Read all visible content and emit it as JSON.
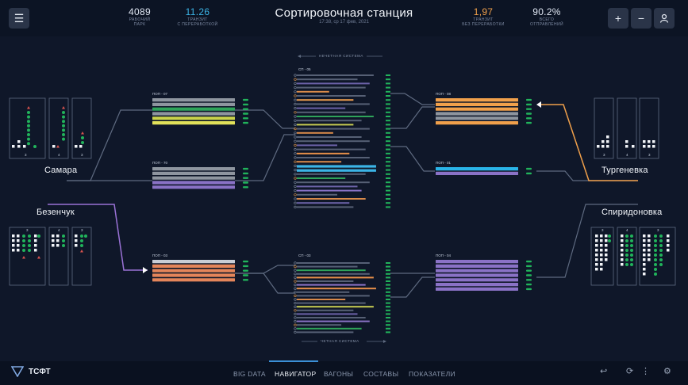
{
  "header": {
    "title": "Сортировочная станция",
    "subtitle": "17:38, ср 17 фев, 2021",
    "stats": [
      {
        "value": "4089",
        "label1": "РАБОЧИЙ",
        "label2": "ПАРК",
        "color": "#e8edf5"
      },
      {
        "value": "11.26",
        "label1": "ТРАНЗИТ",
        "label2": "С ПЕРЕРАБОТКОЙ",
        "color": "#3bb4e6"
      },
      {
        "value": "1,97",
        "label1": "ТРАНЗИТ",
        "label2": "БЕЗ ПЕРЕРАБОТКИ",
        "color": "#f0a04b"
      },
      {
        "value": "90.2%",
        "label1": "ВСЕГО",
        "label2": "ОТПРАВЛЕНИЙ",
        "color": "#e8edf5"
      }
    ],
    "buttons": {
      "menu": "☰",
      "zoom_in": "+",
      "zoom_out": "−",
      "profile": "👤"
    }
  },
  "systems": {
    "odd": "НЕЧЕТНАЯ СИСТЕМА",
    "even": "ЧЕТНАЯ СИСТЕМА"
  },
  "cities": {
    "samara": "Самара",
    "bezenchuk": "Безенчук",
    "turgenevka": "Тургеневка",
    "spiridonovka": "Спиридоновка"
  },
  "park_counts": {
    "samara": [
      "3",
      "4",
      "3"
    ],
    "bezenchuk": [
      "3",
      "4",
      "3"
    ],
    "turgenevka": [
      "3",
      "4",
      "3"
    ],
    "spiridonovka": [
      "3",
      "4",
      "3"
    ]
  },
  "yards": {
    "pop07": {
      "label": "ПОП - 07",
      "colors": [
        "#8e959f",
        "#8e959f",
        "#2fa45a",
        "#8e959f",
        "#c9d24a",
        "#e2e25a"
      ]
    },
    "pop70": {
      "label": "ПОП - 70",
      "colors": [
        "#8e959f",
        "#8e959f",
        "#8e959f",
        "#8a72c6",
        "#8a72c6"
      ]
    },
    "pop03": {
      "label": "ПОП - 03",
      "colors": [
        "#c8cdd6",
        "#e4855a",
        "#e4855a",
        "#e4855a",
        "#e4855a"
      ]
    },
    "pop08": {
      "label": "ПОП - 08",
      "colors": [
        "#f0a04b",
        "#f0a04b",
        "#f0a04b",
        "#8e959f",
        "#8e959f",
        "#f0a04b"
      ]
    },
    "pop01": {
      "label": "ПОП - 01",
      "colors": [
        "#2ab4e8",
        "#8a72c6"
      ]
    },
    "pop04": {
      "label": "ПОП - 04",
      "colors": [
        "#8a72c6",
        "#8a72c6",
        "#8a72c6",
        "#8a72c6",
        "#8a72c6",
        "#8a72c6",
        "#8a72c6"
      ]
    },
    "sp05": {
      "label": "СП - 05",
      "colors": [
        "#566075",
        "#566075",
        "#6c62a8",
        "#566075",
        "#d98a4a",
        "#566075",
        "#e89a4c",
        "#566075",
        "#6c62a8",
        "#566075",
        "#2fa45a",
        "#566075",
        "#c8cd52",
        "#566075",
        "#d98a4a",
        "#566075",
        "#566075",
        "#6c62a8",
        "#566075",
        "#e8904a",
        "#566075",
        "#d98a4a",
        "#3bb4e6",
        "#3bb4e6",
        "#566075",
        "#2fa45a",
        "#566075",
        "#6c62a8",
        "#8a72c6",
        "#566075",
        "#d98a4a",
        "#6c62a8",
        "#566075"
      ],
      "lengths": [
        0.95,
        0.75,
        0.9,
        0.85,
        0.4,
        0.85,
        0.7,
        0.9,
        0.6,
        0.85,
        0.95,
        0.8,
        0.7,
        0.9,
        0.45,
        0.8,
        0.9,
        0.5,
        0.85,
        0.65,
        0.9,
        0.55,
        0.98,
        0.98,
        0.85,
        0.6,
        0.9,
        0.75,
        0.8,
        0.5,
        0.85,
        0.65,
        0.7
      ]
    },
    "sp03": {
      "label": "СП - 03",
      "colors": [
        "#566075",
        "#566075",
        "#2fa45a",
        "#566075",
        "#e8904a",
        "#566075",
        "#8a72c6",
        "#e8904a",
        "#566075",
        "#566075",
        "#d98a4a",
        "#566075",
        "#c8cd52",
        "#566075",
        "#6c62a8",
        "#566075",
        "#8a72c6",
        "#566075",
        "#2fa45a",
        "#566075"
      ],
      "lengths": [
        0.9,
        0.75,
        0.85,
        0.9,
        0.95,
        0.7,
        0.85,
        0.98,
        0.65,
        0.9,
        0.6,
        0.85,
        0.95,
        0.7,
        0.75,
        0.85,
        0.9,
        0.55,
        0.8,
        0.7
      ]
    }
  },
  "accent": {
    "green": "#21b35b",
    "line": "#5e6a80",
    "purple": "#9a72d6",
    "orange": "#f0a04b",
    "red": "#d9534f"
  },
  "nav": {
    "logo": "ТСФТ",
    "items": [
      "BIG DATA",
      "НАВИГАТОР",
      "ВАГОНЫ",
      "СОСТАВЫ",
      "ПОКАЗАТЕЛИ"
    ],
    "active": "НАВИГАТОР",
    "icons": {
      "back": "↩",
      "refresh": "⟳",
      "more": "⋮",
      "settings": "⚙"
    }
  }
}
